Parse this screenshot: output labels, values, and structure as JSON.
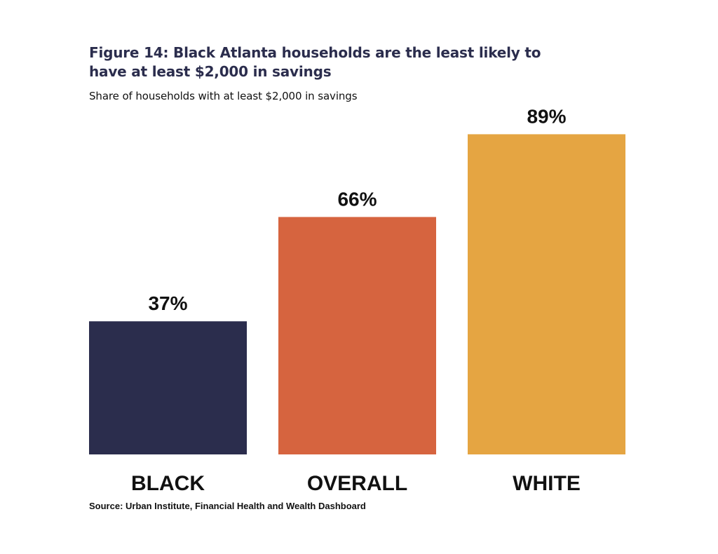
{
  "chart_data": {
    "type": "bar",
    "title": "Figure 14: Black Atlanta households are the least likely to have at least $2,000 in savings",
    "subtitle": "Share of households with at least $2,000 in savings",
    "categories": [
      "BLACK",
      "OVERALL",
      "WHITE"
    ],
    "values": [
      37,
      66,
      89
    ],
    "value_labels": [
      "37%",
      "66%",
      "89%"
    ],
    "colors": [
      "#2b2d4d",
      "#d6643f",
      "#e5a542"
    ],
    "xlabel": "",
    "ylabel": "",
    "ylim": [
      0,
      100
    ],
    "grid": false,
    "legend": "none",
    "source": "Source: Urban Institute, Financial Health and Wealth Dashboard"
  }
}
